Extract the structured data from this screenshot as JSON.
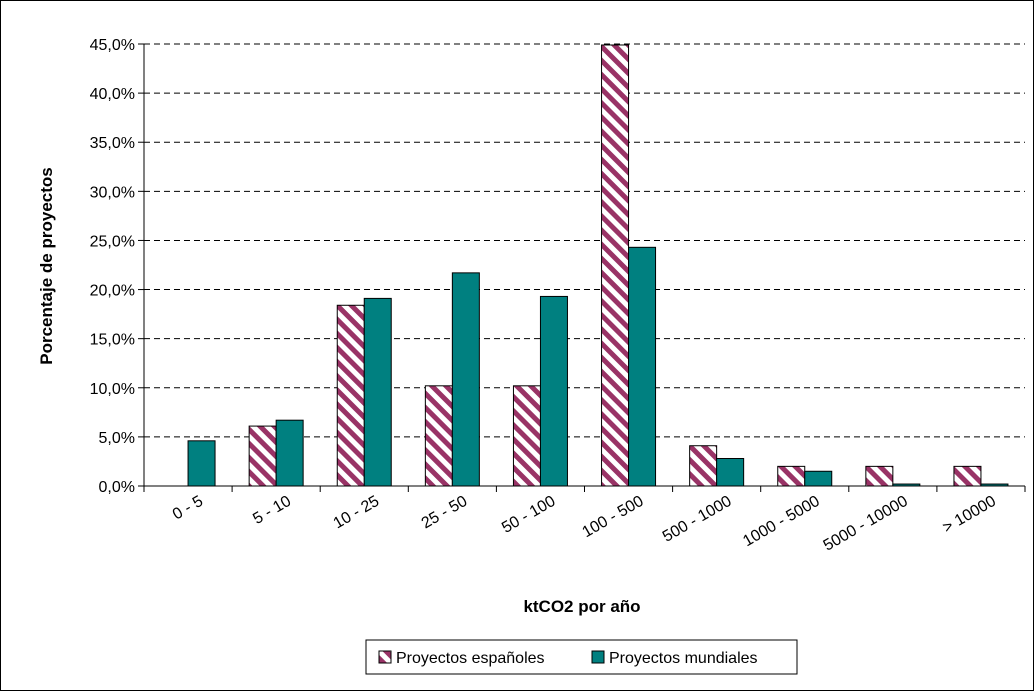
{
  "chart_data": {
    "type": "bar",
    "title": "",
    "xlabel": "ktCO2 por año",
    "ylabel": "Porcentaje de proyectos",
    "ylim": [
      0,
      45
    ],
    "ytick_step": 5,
    "ytick_labels": [
      "0,0%",
      "5,0%",
      "10,0%",
      "15,0%",
      "20,0%",
      "25,0%",
      "30,0%",
      "35,0%",
      "40,0%",
      "45,0%"
    ],
    "grid": "horizontal dashed",
    "legend_position": "bottom",
    "categories": [
      "0 - 5",
      "5 - 10",
      "10 - 25",
      "25 - 50",
      "50 - 100",
      "100 - 500",
      "500 - 1000",
      "1000 - 5000",
      "5000 - 10000",
      "> 10000"
    ],
    "series": [
      {
        "name": "Proyectos españoles",
        "values": [
          0,
          6.1,
          18.4,
          10.2,
          10.2,
          44.9,
          4.1,
          2.0,
          2.0,
          2.0
        ],
        "color": "#993366",
        "pattern": "diagonal-stripes"
      },
      {
        "name": "Proyectos mundiales",
        "values": [
          4.6,
          6.7,
          19.1,
          21.7,
          19.3,
          24.3,
          2.8,
          1.5,
          0.2,
          0.2
        ],
        "color": "#008080",
        "pattern": "solid"
      }
    ]
  }
}
